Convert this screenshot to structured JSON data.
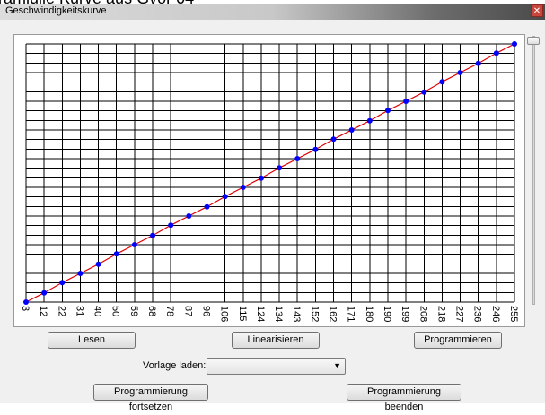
{
  "top_text": "ramlulle Kurve aus Gvor 04",
  "window": {
    "title": "Geschwindigkeitskurve",
    "close_glyph": "✕"
  },
  "buttons": {
    "lesen": "Lesen",
    "linearisieren": "Linearisieren",
    "programmieren": "Programmieren",
    "fortsetzen": "Programmierung fortsetzen",
    "beenden": "Programmierung beenden"
  },
  "vorlage": {
    "label": "Vorlage laden:",
    "value": "",
    "arrow_glyph": "▼"
  },
  "colors": {
    "grid": "#000000",
    "line": "#e00000",
    "point": "#0000ff"
  },
  "chart_data": {
    "type": "line",
    "title": "",
    "xlabel": "",
    "ylabel": "",
    "x": [
      3,
      12,
      22,
      31,
      40,
      50,
      59,
      68,
      78,
      87,
      96,
      106,
      115,
      124,
      134,
      143,
      152,
      162,
      171,
      180,
      190,
      199,
      208,
      218,
      227,
      236,
      246,
      255
    ],
    "series": [
      {
        "values": [
          3,
          12,
          22,
          31,
          40,
          50,
          59,
          68,
          78,
          87,
          96,
          106,
          115,
          124,
          134,
          143,
          152,
          162,
          171,
          180,
          190,
          199,
          208,
          218,
          227,
          236,
          246,
          255
        ]
      }
    ],
    "ylim": [
      3,
      255
    ],
    "grid": true,
    "legend": "none"
  }
}
